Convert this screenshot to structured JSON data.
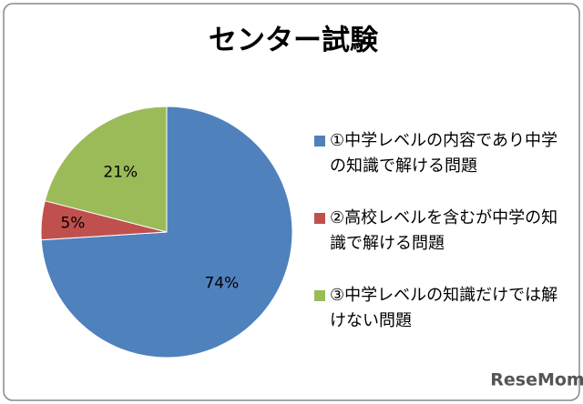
{
  "chart_data": {
    "type": "pie",
    "title": "センター試験",
    "categories": [
      "①中学レベルの内容であり中学の知識で解ける問題",
      "②高校レベルを含むが中学の知識で解ける問題",
      "③中学レベルの知識だけでは解けない問題"
    ],
    "values": [
      74,
      5,
      21
    ],
    "value_labels": [
      "74%",
      "5%",
      "21%"
    ],
    "colors": [
      "#4f81bd",
      "#c0504d",
      "#9bbb59"
    ],
    "legend": "right"
  },
  "watermark": "ReseMom"
}
